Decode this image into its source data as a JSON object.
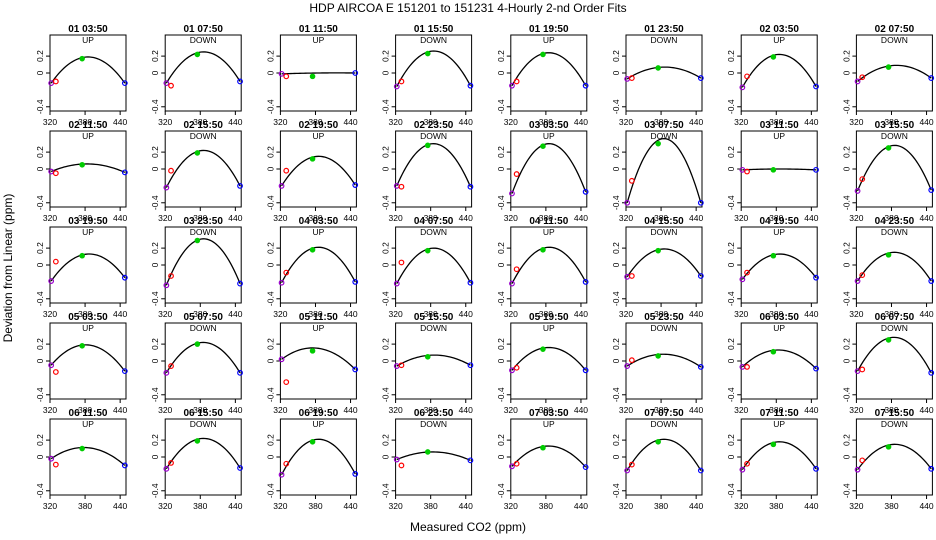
{
  "figure": {
    "title": "HDP   AIRCOA E   151201 to 151231   4-Hourly 2-nd Order Fits",
    "xlabel": "Measured CO2 (ppm)",
    "ylabel": "Deviation from Linear (ppm)"
  },
  "colors": {
    "curve": "#000000",
    "low_standard": "#ff0000",
    "low_standard_alt": "#9900cc",
    "mid_standard": "#00cc00",
    "high_standard": "#0000ff",
    "frame": "#000000"
  },
  "chart_data": {
    "type": "scatter",
    "layout": "small multiples 8 columns x 5 rows",
    "xlim": [
      320,
      450
    ],
    "ylim": [
      -0.45,
      0.45
    ],
    "x_ticks": [
      320,
      380,
      440
    ],
    "y_ticks": [
      -0.4,
      0,
      0.2
    ],
    "x_tick_labels": [
      "320",
      "380",
      "440"
    ],
    "y_tick_labels": [
      "-0.4",
      "0",
      "0.2"
    ],
    "standards_x": [
      322,
      330,
      375,
      448
    ],
    "panels": [
      {
        "title": "01 03:50",
        "tag": "UP",
        "peak": 0.19,
        "y": [
          -0.12,
          -0.1,
          0.17,
          -0.12
        ]
      },
      {
        "title": "01 07:50",
        "tag": "DOWN",
        "peak": 0.25,
        "y": [
          -0.12,
          -0.15,
          0.22,
          -0.1
        ]
      },
      {
        "title": "01 11:50",
        "tag": "UP",
        "peak": 0.0,
        "y": [
          -0.01,
          -0.04,
          -0.04,
          0.0
        ]
      },
      {
        "title": "01 15:50",
        "tag": "DOWN",
        "peak": 0.26,
        "y": [
          -0.16,
          -0.1,
          0.23,
          -0.15
        ]
      },
      {
        "title": "01 19:50",
        "tag": "UP",
        "peak": 0.24,
        "y": [
          -0.15,
          -0.1,
          0.22,
          -0.15
        ]
      },
      {
        "title": "01 23:50",
        "tag": "DOWN",
        "peak": 0.07,
        "y": [
          -0.07,
          -0.06,
          0.06,
          -0.06
        ]
      },
      {
        "title": "02 03:50",
        "tag": "UP",
        "peak": 0.22,
        "y": [
          -0.17,
          -0.04,
          0.19,
          -0.16
        ]
      },
      {
        "title": "02 07:50",
        "tag": "DOWN",
        "peak": 0.09,
        "y": [
          -0.1,
          -0.05,
          0.07,
          -0.06
        ]
      },
      {
        "title": "02 11:50",
        "tag": "UP",
        "peak": 0.06,
        "y": [
          -0.03,
          -0.05,
          0.05,
          -0.04
        ]
      },
      {
        "title": "02 15:50",
        "tag": "DOWN",
        "peak": 0.22,
        "y": [
          -0.22,
          -0.02,
          0.19,
          -0.2
        ]
      },
      {
        "title": "02 19:50",
        "tag": "UP",
        "peak": 0.15,
        "y": [
          -0.2,
          -0.02,
          0.12,
          -0.19
        ]
      },
      {
        "title": "02 23:50",
        "tag": "DOWN",
        "peak": 0.3,
        "y": [
          -0.2,
          -0.21,
          0.28,
          -0.21
        ]
      },
      {
        "title": "03 03:50",
        "tag": "UP",
        "peak": 0.3,
        "y": [
          -0.29,
          -0.06,
          0.27,
          -0.27
        ]
      },
      {
        "title": "03 07:50",
        "tag": "DOWN",
        "peak": 0.36,
        "y": [
          -0.4,
          -0.14,
          0.3,
          -0.4
        ]
      },
      {
        "title": "03 11:50",
        "tag": "UP",
        "peak": 0.0,
        "y": [
          -0.01,
          -0.03,
          -0.01,
          -0.01
        ]
      },
      {
        "title": "03 15:50",
        "tag": "DOWN",
        "peak": 0.28,
        "y": [
          -0.26,
          -0.12,
          0.25,
          -0.25
        ]
      },
      {
        "title": "03 19:50",
        "tag": "UP",
        "peak": 0.13,
        "y": [
          -0.19,
          0.04,
          0.11,
          -0.15
        ]
      },
      {
        "title": "03 23:50",
        "tag": "DOWN",
        "peak": 0.31,
        "y": [
          -0.24,
          -0.13,
          0.29,
          -0.22
        ]
      },
      {
        "title": "04 03:50",
        "tag": "UP",
        "peak": 0.21,
        "y": [
          -0.21,
          -0.09,
          0.18,
          -0.2
        ]
      },
      {
        "title": "04 07:50",
        "tag": "DOWN",
        "peak": 0.2,
        "y": [
          -0.22,
          0.03,
          0.17,
          -0.21
        ]
      },
      {
        "title": "04 11:50",
        "tag": "UP",
        "peak": 0.21,
        "y": [
          -0.22,
          -0.05,
          0.18,
          -0.2
        ]
      },
      {
        "title": "04 15:50",
        "tag": "DOWN",
        "peak": 0.19,
        "y": [
          -0.14,
          -0.13,
          0.17,
          -0.13
        ]
      },
      {
        "title": "04 19:50",
        "tag": "UP",
        "peak": 0.13,
        "y": [
          -0.17,
          -0.09,
          0.11,
          -0.15
        ]
      },
      {
        "title": "04 23:50",
        "tag": "DOWN",
        "peak": 0.15,
        "y": [
          -0.19,
          -0.12,
          0.12,
          -0.19
        ]
      },
      {
        "title": "05 03:50",
        "tag": "UP",
        "peak": 0.19,
        "y": [
          -0.05,
          -0.13,
          0.18,
          -0.12
        ]
      },
      {
        "title": "05 07:50",
        "tag": "DOWN",
        "peak": 0.22,
        "y": [
          -0.14,
          -0.06,
          0.2,
          -0.14
        ]
      },
      {
        "title": "05 11:50",
        "tag": "UP",
        "peak": 0.15,
        "y": [
          0.02,
          -0.25,
          0.12,
          -0.1
        ]
      },
      {
        "title": "05 15:50",
        "tag": "DOWN",
        "peak": 0.07,
        "y": [
          -0.06,
          -0.05,
          0.05,
          -0.05
        ]
      },
      {
        "title": "05 19:50",
        "tag": "UP",
        "peak": 0.16,
        "y": [
          -0.11,
          -0.08,
          0.14,
          -0.11
        ]
      },
      {
        "title": "05 23:50",
        "tag": "DOWN",
        "peak": 0.08,
        "y": [
          -0.06,
          0.01,
          0.06,
          -0.07
        ]
      },
      {
        "title": "06 03:50",
        "tag": "UP",
        "peak": 0.13,
        "y": [
          -0.07,
          -0.07,
          0.11,
          -0.09
        ]
      },
      {
        "title": "06 07:50",
        "tag": "DOWN",
        "peak": 0.28,
        "y": [
          -0.12,
          -0.1,
          0.25,
          -0.14
        ]
      },
      {
        "title": "06 11:50",
        "tag": "UP",
        "peak": 0.11,
        "y": [
          -0.02,
          -0.09,
          0.1,
          -0.1
        ]
      },
      {
        "title": "06 15:50",
        "tag": "DOWN",
        "peak": 0.22,
        "y": [
          -0.14,
          -0.07,
          0.19,
          -0.13
        ]
      },
      {
        "title": "06 19:50",
        "tag": "UP",
        "peak": 0.21,
        "y": [
          -0.21,
          -0.08,
          0.18,
          -0.2
        ]
      },
      {
        "title": "06 23:50",
        "tag": "DOWN",
        "peak": 0.06,
        "y": [
          -0.03,
          -0.1,
          0.06,
          -0.04
        ]
      },
      {
        "title": "07 03:50",
        "tag": "UP",
        "peak": 0.13,
        "y": [
          -0.11,
          -0.08,
          0.11,
          -0.12
        ]
      },
      {
        "title": "07 07:50",
        "tag": "DOWN",
        "peak": 0.21,
        "y": [
          -0.16,
          -0.09,
          0.18,
          -0.16
        ]
      },
      {
        "title": "07 11:50",
        "tag": "UP",
        "peak": 0.18,
        "y": [
          -0.15,
          -0.08,
          0.15,
          -0.14
        ]
      },
      {
        "title": "07 15:50",
        "tag": "DOWN",
        "peak": 0.15,
        "y": [
          -0.15,
          -0.04,
          0.12,
          -0.14
        ]
      }
    ]
  }
}
